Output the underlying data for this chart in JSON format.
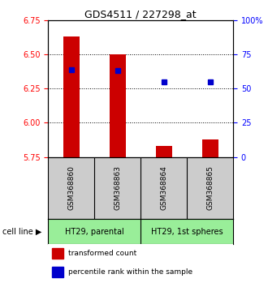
{
  "title": "GDS4511 / 227298_at",
  "samples": [
    "GSM368860",
    "GSM368863",
    "GSM368864",
    "GSM368865"
  ],
  "red_values": [
    6.63,
    6.5,
    5.83,
    5.88
  ],
  "blue_percentiles": [
    64,
    63,
    55,
    55
  ],
  "ylim_left": [
    5.75,
    6.75
  ],
  "ylim_right": [
    0,
    100
  ],
  "yticks_left": [
    5.75,
    6.0,
    6.25,
    6.5,
    6.75
  ],
  "yticks_right": [
    0,
    25,
    50,
    75,
    100
  ],
  "ytick_labels_right": [
    "0",
    "25",
    "50",
    "75",
    "100%"
  ],
  "cell_lines": [
    "HT29, parental",
    "HT29, 1st spheres"
  ],
  "bar_bottom": 5.75,
  "bar_color": "#cc0000",
  "dot_color": "#0000cc",
  "bg_plot": "#ffffff",
  "bg_sample_label": "#cccccc",
  "bg_cell_line": "#99ee99",
  "legend_red_label": "transformed count",
  "legend_blue_label": "percentile rank within the sample",
  "cell_line_label": "cell line"
}
